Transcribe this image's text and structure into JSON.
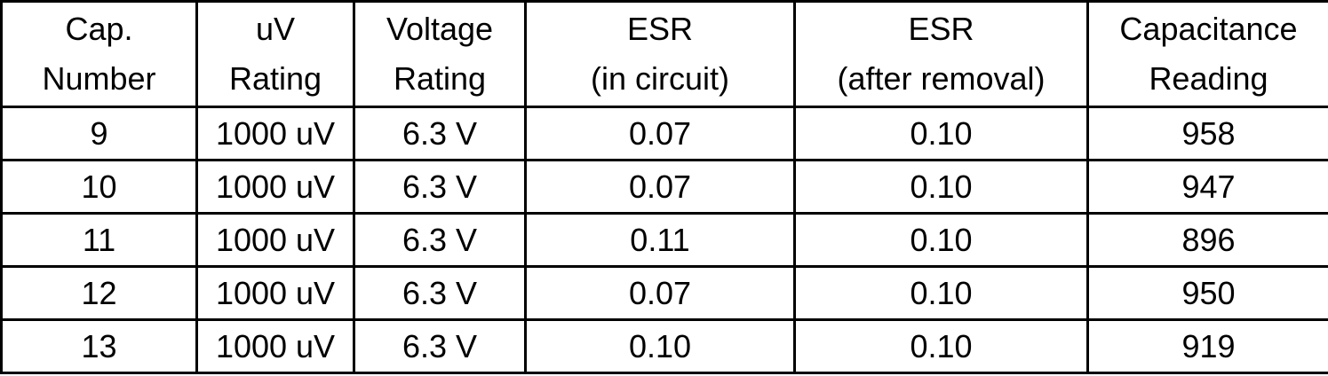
{
  "table": {
    "headers": [
      [
        "Cap.",
        "Number"
      ],
      [
        "uV",
        "Rating"
      ],
      [
        "Voltage",
        "Rating"
      ],
      [
        "ESR",
        "(in circuit)"
      ],
      [
        "ESR",
        "(after removal)"
      ],
      [
        "Capacitance",
        "Reading"
      ]
    ],
    "rows": [
      [
        "9",
        "1000 uV",
        "6.3 V",
        "0.07",
        "0.10",
        "958"
      ],
      [
        "10",
        "1000 uV",
        "6.3 V",
        "0.07",
        "0.10",
        "947"
      ],
      [
        "11",
        "1000 uV",
        "6.3 V",
        "0.11",
        "0.10",
        "896"
      ],
      [
        "12",
        "1000 uV",
        "6.3 V",
        "0.07",
        "0.10",
        "950"
      ],
      [
        "13",
        "1000 uV",
        "6.3 V",
        "0.10",
        "0.10",
        "919"
      ]
    ]
  }
}
